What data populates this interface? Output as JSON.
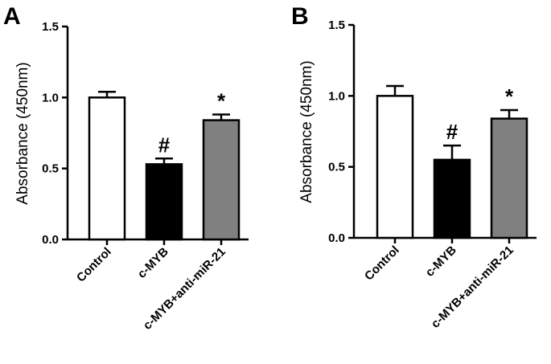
{
  "chart_data": [
    {
      "type": "bar",
      "panel": "A",
      "categories": [
        "Control",
        "c-MYB",
        "c-MYB+anti-miR-21"
      ],
      "values": [
        1.0,
        0.53,
        0.84
      ],
      "errors": [
        0.04,
        0.04,
        0.04
      ],
      "annotations": [
        "",
        "#",
        "*"
      ],
      "colors": [
        "#ffffff",
        "#000000",
        "#808080"
      ],
      "ylabel": "Absorbance (450nm)",
      "ylim": [
        0,
        1.5
      ],
      "yticks": [
        "0.0",
        "0.5",
        "1.0",
        "1.5"
      ],
      "grid": false
    },
    {
      "type": "bar",
      "panel": "B",
      "categories": [
        "Control",
        "c-MYB",
        "c-MYB+anti-miR-21"
      ],
      "values": [
        1.0,
        0.55,
        0.84
      ],
      "errors": [
        0.07,
        0.1,
        0.06
      ],
      "annotations": [
        "",
        "#",
        "*"
      ],
      "colors": [
        "#ffffff",
        "#000000",
        "#808080"
      ],
      "ylabel": "Absorbance (450nm)",
      "ylim": [
        0,
        1.5
      ],
      "yticks": [
        "0.0",
        "0.5",
        "1.0",
        "1.5"
      ],
      "grid": false
    }
  ]
}
